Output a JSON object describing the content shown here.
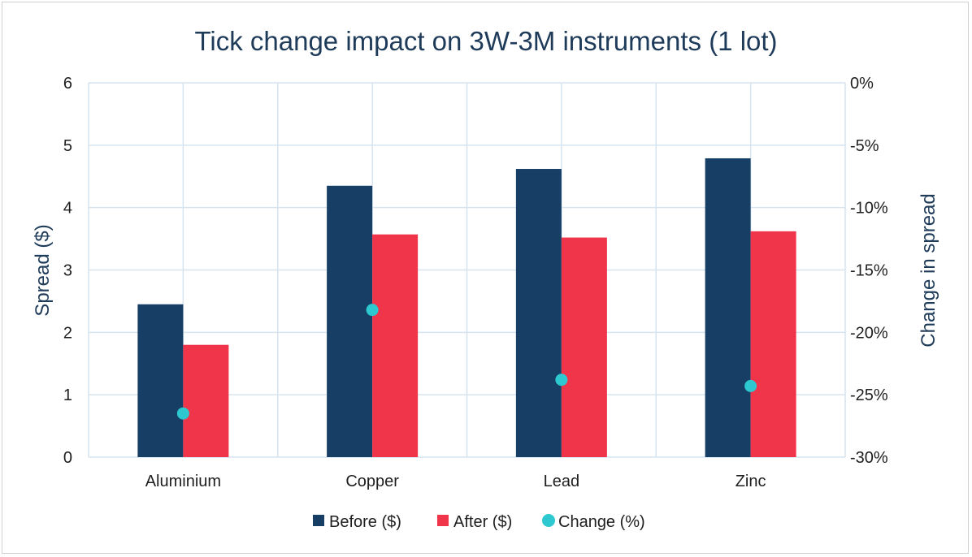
{
  "chart_data": {
    "type": "bar",
    "title": "Tick change impact on 3W-3M instruments (1 lot)",
    "categories": [
      "Aluminium",
      "Copper",
      "Lead",
      "Zinc"
    ],
    "series": [
      {
        "name": "Before ($)",
        "values": [
          2.45,
          4.35,
          4.62,
          4.79
        ],
        "color": "#173f66",
        "axis": "left",
        "kind": "bar"
      },
      {
        "name": "After ($)",
        "values": [
          1.8,
          3.57,
          3.52,
          3.62
        ],
        "color": "#f0344a",
        "axis": "left",
        "kind": "bar"
      },
      {
        "name": "Change (%)",
        "values": [
          -26.5,
          -18.2,
          -23.8,
          -24.3
        ],
        "color": "#2ec8d0",
        "axis": "right",
        "kind": "scatter"
      }
    ],
    "ylabel": "Spread ($)",
    "y2label": "Change in spread",
    "ylim": [
      0,
      6
    ],
    "y2lim": [
      -30,
      0
    ],
    "yticks": [
      "0",
      "1",
      "2",
      "3",
      "4",
      "5",
      "6"
    ],
    "y2ticks": [
      "-30%",
      "-25%",
      "-20%",
      "-15%",
      "-10%",
      "-5%",
      "0%"
    ],
    "grid": true,
    "legend": "bottom"
  }
}
